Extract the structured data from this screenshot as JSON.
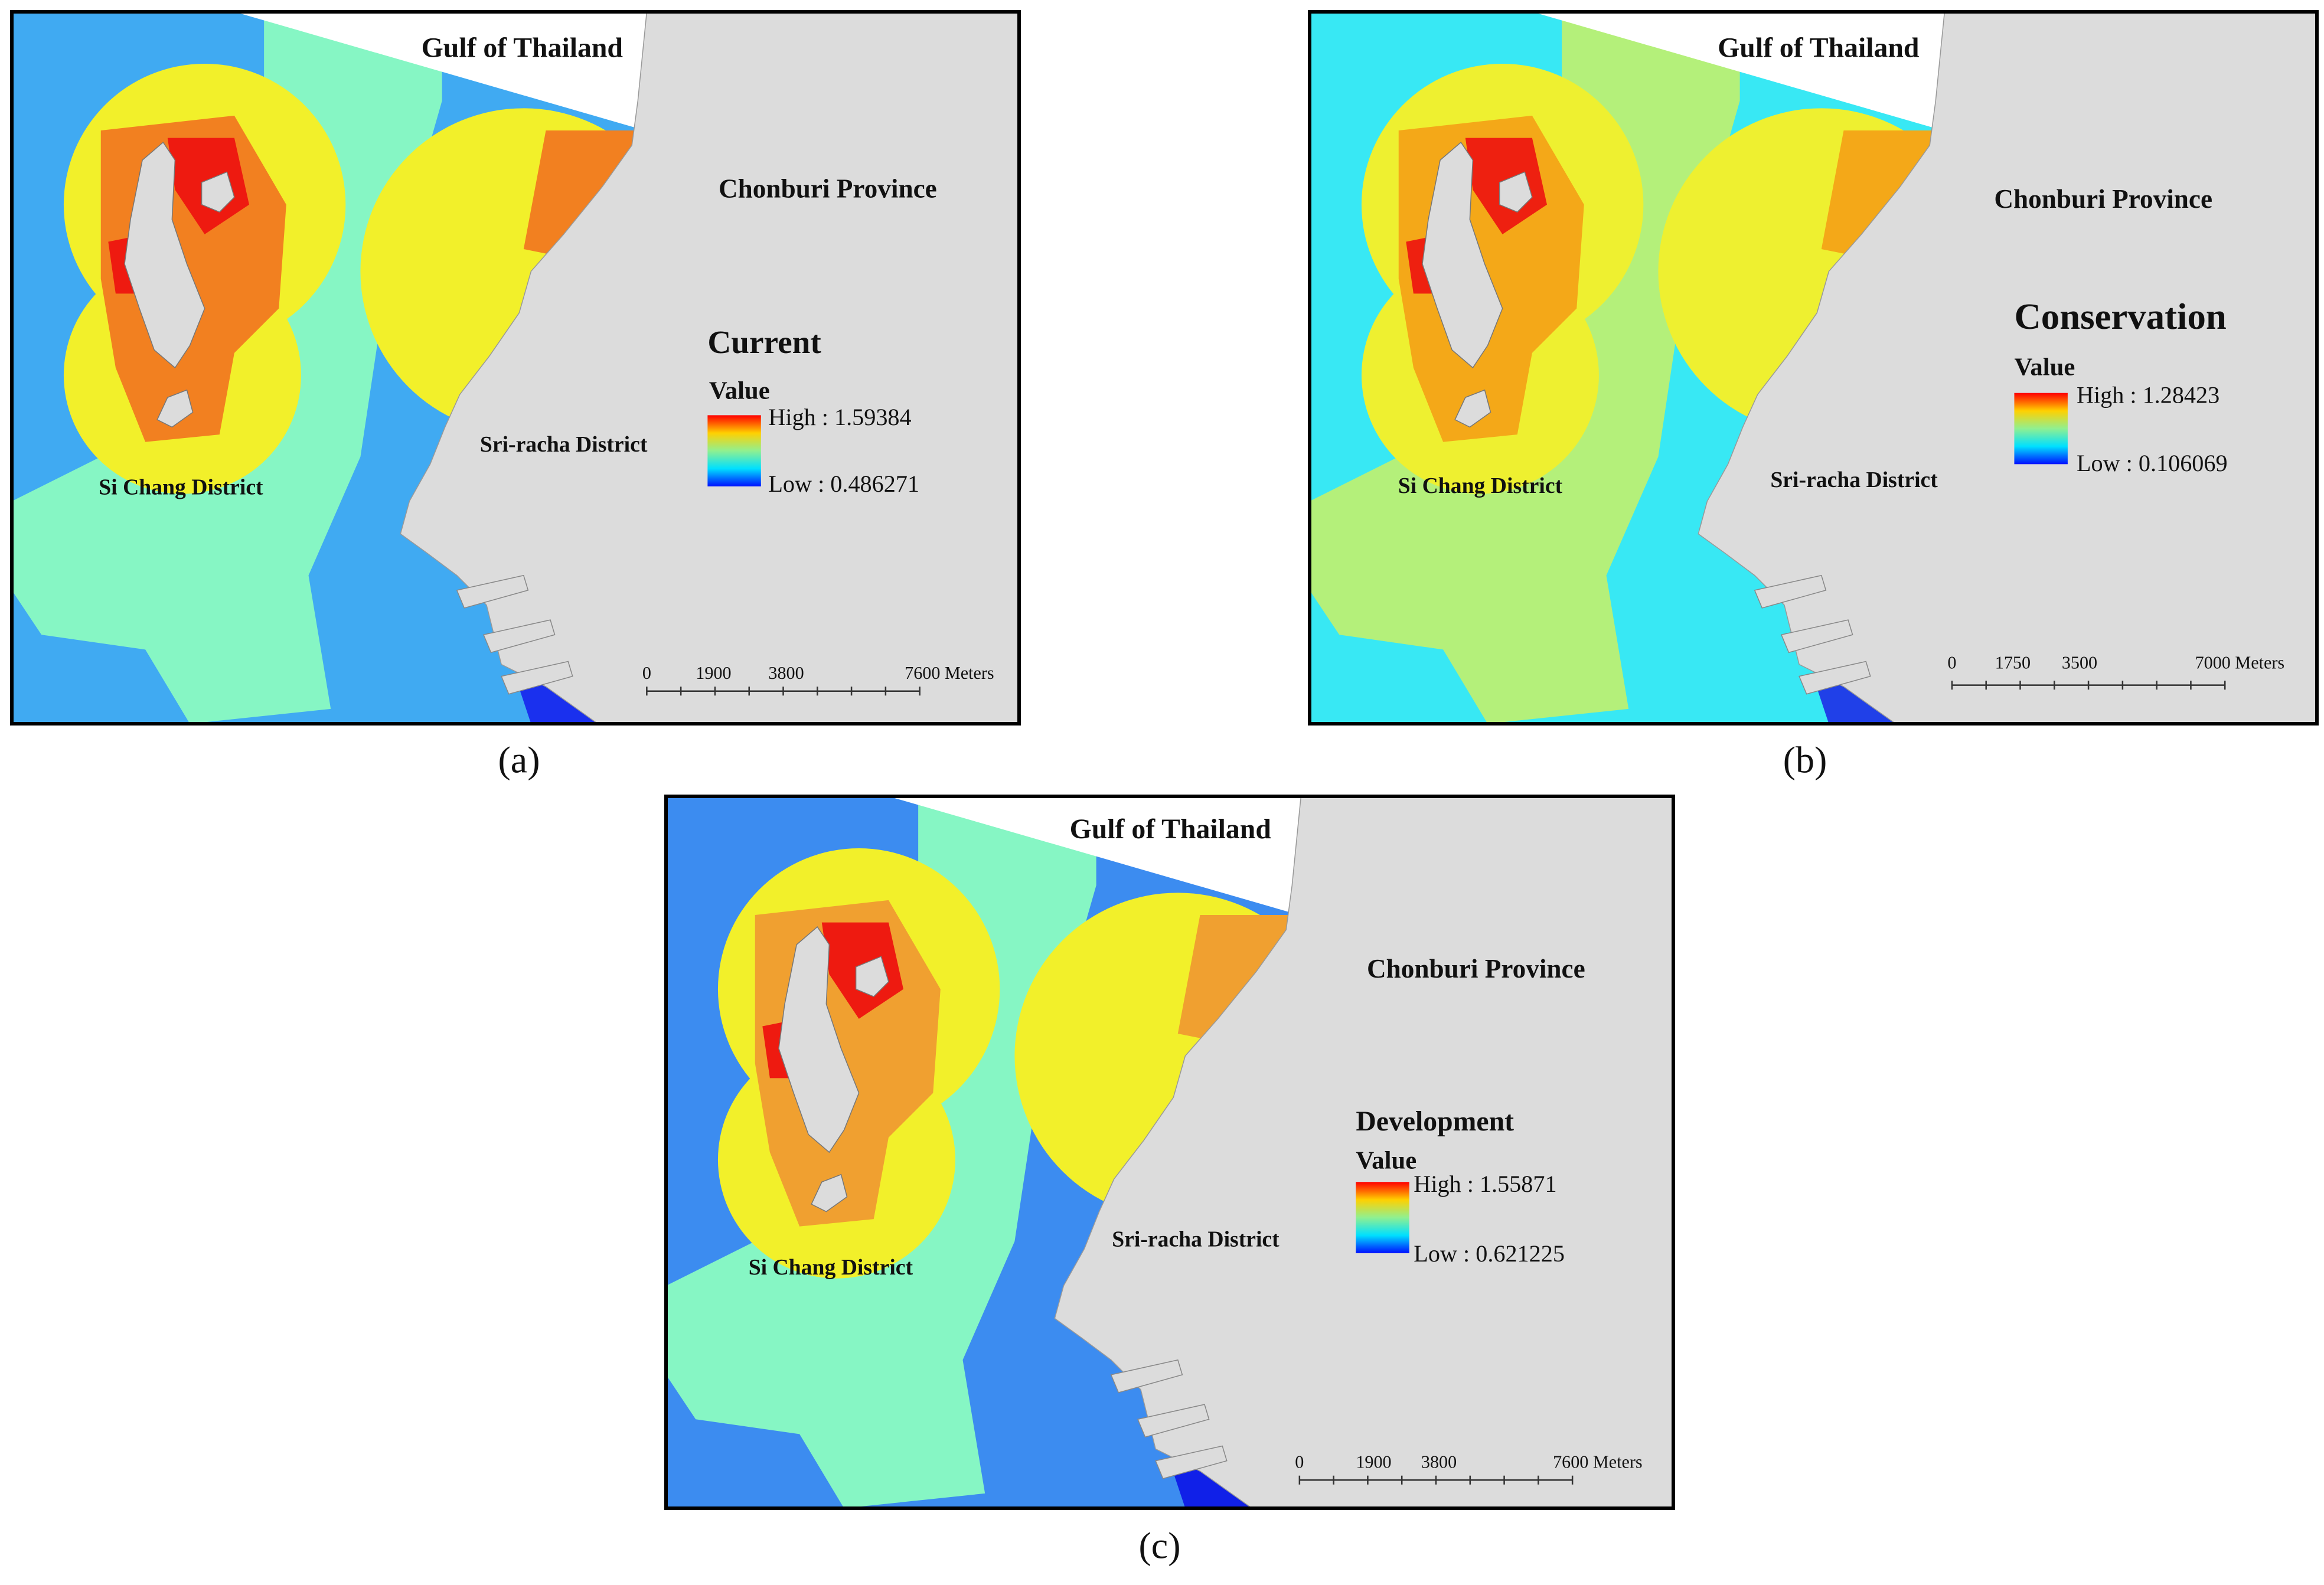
{
  "panels": [
    {
      "caption": "(a)",
      "gulf": "Gulf of Thailand",
      "province": "Chonburi Province",
      "district_east": "Sri-racha District",
      "district_west": "Si Chang District",
      "legend": {
        "title": "Current",
        "subtitle": "Value",
        "high": "High : 1.59384",
        "low": "Low : 0.486271"
      },
      "scale": [
        "0",
        "1900",
        "3800",
        "7600 Meters"
      ]
    },
    {
      "caption": "(b)",
      "gulf": "Gulf of Thailand",
      "province": "Chonburi Province",
      "district_east": "Sri-racha District",
      "district_west": "Si Chang District",
      "legend": {
        "title": "Conservation",
        "subtitle": "Value",
        "high": "High : 1.28423",
        "low": "Low : 0.106069"
      },
      "scale": [
        "0",
        "1750",
        "3500",
        "7000 Meters"
      ]
    },
    {
      "caption": "(c)",
      "gulf": "Gulf of Thailand",
      "province": "Chonburi Province",
      "district_east": "Sri-racha District",
      "district_west": "Si Chang District",
      "legend": {
        "title": "Development",
        "subtitle": "Value",
        "high": "High : 1.55871",
        "low": "Low : 0.621225"
      },
      "scale": [
        "0",
        "1900",
        "3800",
        "7600 Meters"
      ]
    }
  ]
}
